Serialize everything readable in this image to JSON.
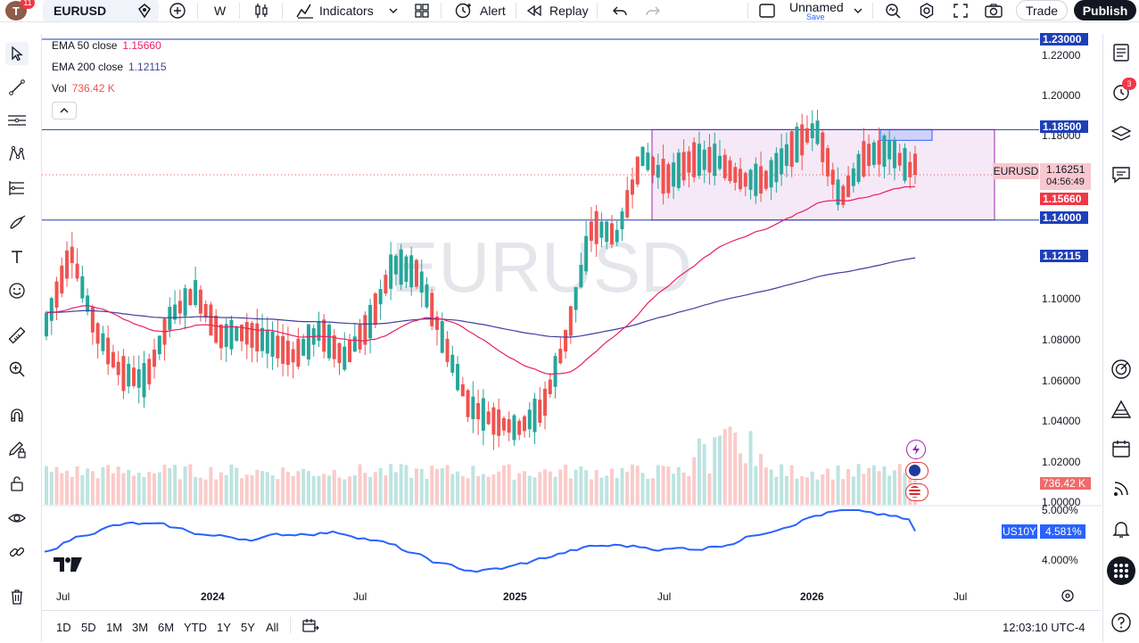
{
  "topbar": {
    "avatar_letter": "T",
    "avatar_badge": "11",
    "symbol": "EURUSD",
    "interval": "W",
    "indicators_label": "Indicators",
    "alert_label": "Alert",
    "replay_label": "Replay",
    "layout_name": "Unnamed",
    "layout_save": "Save",
    "trade_label": "Trade",
    "publish_label": "Publish",
    "icons": [
      "plus-circle-icon",
      "candles-icon",
      "indicators-icon",
      "layout-grid-icon",
      "alert-clock-icon",
      "replay-icon",
      "undo-icon",
      "redo-icon",
      "fullscreen-square-icon",
      "search-icon",
      "settings-icon",
      "fullscreen-icon",
      "camera-icon"
    ]
  },
  "legend": {
    "ema50_label": "EMA 50 close",
    "ema50_value": "1.15660",
    "ema200_label": "EMA 200 close",
    "ema200_value": "1.12115",
    "vol_label": "Vol",
    "vol_value": "736.42 K"
  },
  "watermark": "EURUSD",
  "price_axis": {
    "ticks": [
      "1.22000",
      "1.20000",
      "1.18000",
      "1.10000",
      "1.08000",
      "1.06000",
      "1.04000",
      "1.02000",
      "1.00000"
    ],
    "label_1230": "1.23000",
    "label_1185": "1.18500",
    "label_1140": "1.14000",
    "label_ema200": "1.12115",
    "label_ema50": "1.15660",
    "current_price": "1.16251",
    "countdown": "04:56:49",
    "symbol_tag": "EURUSD",
    "volume_label": "736.42 K",
    "colors": {
      "blue_label": "#1e3fb8",
      "red_label": "#f23645",
      "pink_tag": "#f8c7d0"
    }
  },
  "lower_pane": {
    "tick_high": "5.000%",
    "tick_low": "4.000%",
    "symbol": "US10Y",
    "value": "4.581%",
    "line_color": "#2962ff"
  },
  "time_axis": {
    "labels": [
      {
        "text": "Jul",
        "bold": false
      },
      {
        "text": "2024",
        "bold": true
      },
      {
        "text": "Jul",
        "bold": false
      },
      {
        "text": "2025",
        "bold": true
      },
      {
        "text": "Jul",
        "bold": false
      },
      {
        "text": "2026",
        "bold": true
      },
      {
        "text": "Jul",
        "bold": false
      }
    ]
  },
  "bottombar": {
    "ranges": [
      "1D",
      "5D",
      "1M",
      "3M",
      "6M",
      "YTD",
      "1Y",
      "5Y",
      "All"
    ],
    "clock": "12:03:10 UTC-4"
  },
  "right_toolbar": {
    "alert_badge": "3",
    "icons": [
      "watchlist-icon",
      "alert-clock-icon",
      "layers-icon",
      "chat-icon",
      "target-icon",
      "pyramid-icon",
      "calendar-icon",
      "broadcast-icon",
      "bell-icon",
      "apps-icon",
      "help-icon"
    ]
  },
  "chart_data": {
    "type": "candlestick",
    "interval": "weekly",
    "symbol": "EURUSD",
    "y_range": [
      0.996,
      1.232
    ],
    "horizontal_levels": [
      1.23,
      1.185,
      1.14
    ],
    "rectangle_zone": {
      "from": "2025-06",
      "to": "2026-08",
      "low": 1.14,
      "high": 1.185
    },
    "colors": {
      "up": "#26a69a",
      "down": "#ef5350",
      "ema50": "#e91e63",
      "ema200": "#3f3fa0"
    },
    "ohlc_weekly_sample": [
      {
        "t": "2023-06",
        "o": 1.072,
        "h": 1.092,
        "l": 1.068,
        "c": 1.088
      },
      {
        "t": "2023-07",
        "o": 1.088,
        "h": 1.127,
        "l": 1.084,
        "c": 1.124
      },
      {
        "t": "2023-08",
        "o": 1.1,
        "h": 1.104,
        "l": 1.08,
        "c": 1.085
      },
      {
        "t": "2023-09",
        "o": 1.078,
        "h": 1.082,
        "l": 1.061,
        "c": 1.064
      },
      {
        "t": "2023-10",
        "o": 1.055,
        "h": 1.065,
        "l": 1.045,
        "c": 1.06
      },
      {
        "t": "2023-11",
        "o": 1.074,
        "h": 1.101,
        "l": 1.072,
        "c": 1.092
      },
      {
        "t": "2023-12",
        "o": 1.088,
        "h": 1.114,
        "l": 1.072,
        "c": 1.104
      },
      {
        "t": "2024-01",
        "o": 1.094,
        "h": 1.098,
        "l": 1.08,
        "c": 1.082
      },
      {
        "t": "2024-02",
        "o": 1.08,
        "h": 1.088,
        "l": 1.07,
        "c": 1.084
      },
      {
        "t": "2024-03",
        "o": 1.084,
        "h": 1.097,
        "l": 1.078,
        "c": 1.079
      },
      {
        "t": "2024-04",
        "o": 1.07,
        "h": 1.078,
        "l": 1.06,
        "c": 1.072
      },
      {
        "t": "2024-05",
        "o": 1.076,
        "h": 1.089,
        "l": 1.074,
        "c": 1.085
      },
      {
        "t": "2024-06",
        "o": 1.072,
        "h": 1.079,
        "l": 1.067,
        "c": 1.071
      },
      {
        "t": "2024-07",
        "o": 1.08,
        "h": 1.094,
        "l": 1.076,
        "c": 1.088
      },
      {
        "t": "2024-08",
        "o": 1.09,
        "h": 1.12,
        "l": 1.088,
        "c": 1.118
      },
      {
        "t": "2024-09",
        "o": 1.112,
        "h": 1.121,
        "l": 1.101,
        "c": 1.113
      },
      {
        "t": "2024-10",
        "o": 1.1,
        "h": 1.104,
        "l": 1.078,
        "c": 1.08
      },
      {
        "t": "2024-11",
        "o": 1.06,
        "h": 1.064,
        "l": 1.033,
        "c": 1.048
      },
      {
        "t": "2024-12",
        "o": 1.056,
        "h": 1.06,
        "l": 1.035,
        "c": 1.04
      },
      {
        "t": "2025-01",
        "o": 1.03,
        "h": 1.038,
        "l": 1.018,
        "c": 1.036
      },
      {
        "t": "2025-02",
        "o": 1.036,
        "h": 1.052,
        "l": 1.025,
        "c": 1.046
      },
      {
        "t": "2025-03",
        "o": 1.058,
        "h": 1.096,
        "l": 1.074,
        "c": 1.083
      },
      {
        "t": "2025-04",
        "o": 1.098,
        "h": 1.157,
        "l": 1.098,
        "c": 1.137
      },
      {
        "t": "2025-05",
        "o": 1.128,
        "h": 1.146,
        "l": 1.107,
        "c": 1.132
      },
      {
        "t": "2025-06",
        "o": 1.14,
        "h": 1.183,
        "l": 1.138,
        "c": 1.172
      },
      {
        "t": "2025-07",
        "o": 1.17,
        "h": 1.183,
        "l": 1.14,
        "c": 1.16
      },
      {
        "t": "2025-08",
        "o": 1.163,
        "h": 1.175,
        "l": 1.155,
        "c": 1.17
      },
      {
        "t": "2025-09",
        "o": 1.172,
        "h": 1.192,
        "l": 1.155,
        "c": 1.17
      },
      {
        "t": "2025-10",
        "o": 1.17,
        "h": 1.177,
        "l": 1.152,
        "c": 1.16
      },
      {
        "t": "2025-11",
        "o": 1.155,
        "h": 1.168,
        "l": 1.15,
        "c": 1.16
      },
      {
        "t": "2025-12",
        "o": 1.165,
        "h": 1.18,
        "l": 1.16,
        "c": 1.175
      },
      {
        "t": "2026-01",
        "o": 1.172,
        "h": 1.208,
        "l": 1.162,
        "c": 1.186
      },
      {
        "t": "2026-02",
        "o": 1.18,
        "h": 1.188,
        "l": 1.14,
        "c": 1.15
      },
      {
        "t": "2026-03",
        "o": 1.15,
        "h": 1.178,
        "l": 1.142,
        "c": 1.172
      },
      {
        "t": "2026-04",
        "o": 1.172,
        "h": 1.183,
        "l": 1.16,
        "c": 1.175
      },
      {
        "t": "2026-05",
        "o": 1.173,
        "h": 1.177,
        "l": 1.158,
        "c": 1.1625
      }
    ],
    "ema50_current": 1.1566,
    "ema200_current": 1.12115,
    "last_price": 1.16251,
    "volume_last": "736.42 K",
    "us10y_range": [
      3.85,
      5.0
    ],
    "us10y_last": 4.581
  }
}
